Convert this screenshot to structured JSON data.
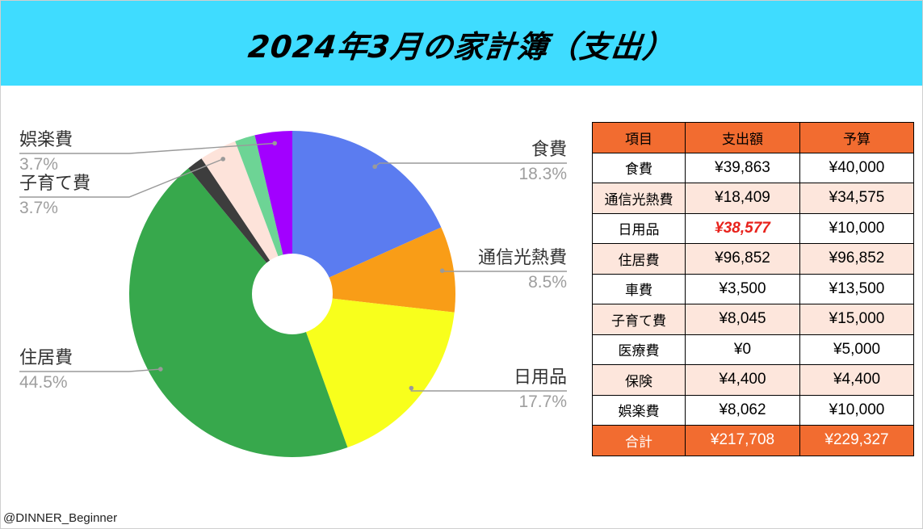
{
  "title": "2024年3月の家計簿（支出）",
  "credit": "@DINNER_Beginner",
  "chart_data": {
    "type": "pie",
    "donut": true,
    "slices": [
      {
        "label": "食費",
        "value": 18.3,
        "pct_label": "18.3%",
        "color": "#5b7cf0"
      },
      {
        "label": "通信光熱費",
        "value": 8.5,
        "pct_label": "8.5%",
        "color": "#f99d17"
      },
      {
        "label": "日用品",
        "value": 17.7,
        "pct_label": "17.7%",
        "color": "#f8ff1c"
      },
      {
        "label": "住居費",
        "value": 44.5,
        "pct_label": "44.5%",
        "color": "#37a84c"
      },
      {
        "label": "車費",
        "value": 1.6,
        "color": "#3d3d3d"
      },
      {
        "label": "子育て費",
        "value": 3.7,
        "pct_label": "3.7%",
        "color": "#fde3da"
      },
      {
        "label": "保険",
        "value": 2.0,
        "color": "#6dd495"
      },
      {
        "label": "娯楽費",
        "value": 3.7,
        "pct_label": "3.7%",
        "color": "#a200ff"
      }
    ]
  },
  "table": {
    "headers": [
      "項目",
      "支出額",
      "予算"
    ],
    "rows": [
      [
        "食費",
        "¥39,863",
        "¥40,000"
      ],
      [
        "通信光熱費",
        "¥18,409",
        "¥34,575"
      ],
      [
        "日用品",
        "¥38,577",
        "¥10,000"
      ],
      [
        "住居費",
        "¥96,852",
        "¥96,852"
      ],
      [
        "車費",
        "¥3,500",
        "¥13,500"
      ],
      [
        "子育て費",
        "¥8,045",
        "¥15,000"
      ],
      [
        "医療費",
        "¥0",
        "¥5,000"
      ],
      [
        "保険",
        "¥4,400",
        "¥4,400"
      ],
      [
        "娯楽費",
        "¥8,062",
        "¥10,000"
      ]
    ],
    "total": [
      "合計",
      "¥217,708",
      "¥229,327"
    ],
    "header_color": "#f26c30",
    "stripe_color": "#fde6dc",
    "over_budget_color": "#e8221c"
  }
}
